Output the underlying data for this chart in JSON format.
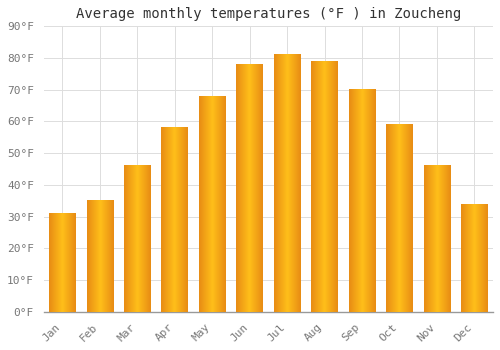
{
  "title": "Average monthly temperatures (°F ) in Zoucheng",
  "months": [
    "Jan",
    "Feb",
    "Mar",
    "Apr",
    "May",
    "Jun",
    "Jul",
    "Aug",
    "Sep",
    "Oct",
    "Nov",
    "Dec"
  ],
  "temperatures": [
    31,
    35,
    46,
    58,
    68,
    78,
    81,
    79,
    70,
    59,
    46,
    34
  ],
  "bar_color_center": "#FFB700",
  "bar_color_edge": "#F08000",
  "background_color": "#FFFFFF",
  "grid_color": "#DDDDDD",
  "ylim": [
    0,
    90
  ],
  "yticks": [
    0,
    10,
    20,
    30,
    40,
    50,
    60,
    70,
    80,
    90
  ],
  "title_fontsize": 10,
  "tick_fontsize": 8,
  "font_family": "monospace",
  "bar_width": 0.75
}
